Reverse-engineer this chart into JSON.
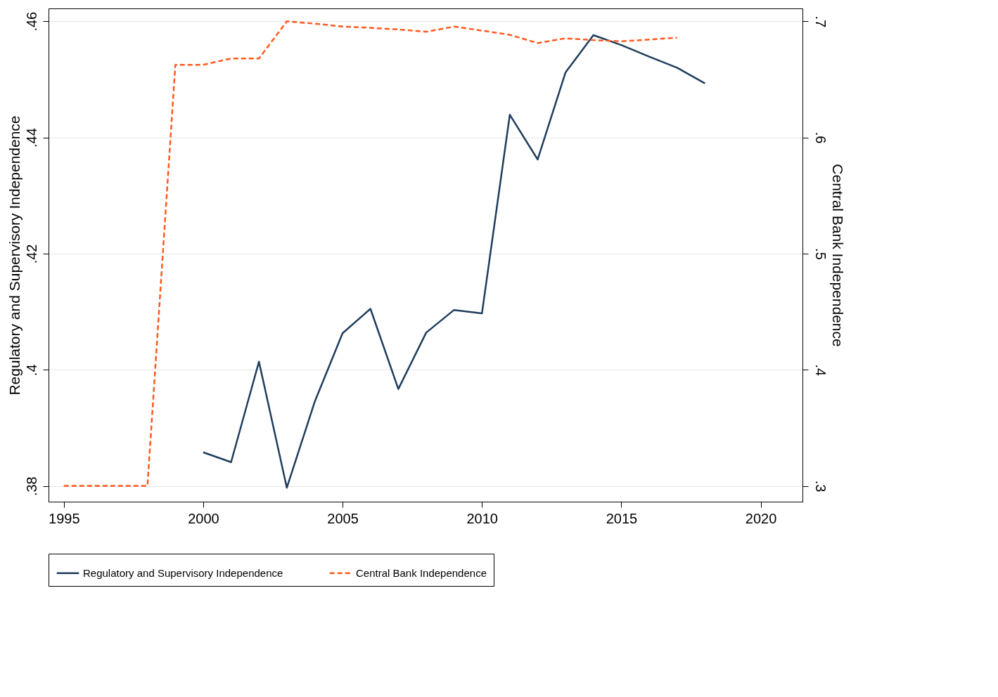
{
  "chart_data": {
    "type": "line",
    "ylabel": "Regulatory and Supervisory Independence",
    "y2label": "Central Bank Independence",
    "xlim": [
      1994.45,
      2021.5
    ],
    "xticks": [
      1995,
      2000,
      2005,
      2010,
      2015,
      2020
    ],
    "ylim": [
      0.3773,
      0.4622
    ],
    "yticks": [
      {
        "value": 0.38,
        "label": ".38"
      },
      {
        "value": 0.4,
        "label": ".4"
      },
      {
        "value": 0.42,
        "label": ".42"
      },
      {
        "value": 0.44,
        "label": ".44"
      },
      {
        "value": 0.46,
        "label": ".46"
      }
    ],
    "y2lim": [
      0.2864,
      0.7111
    ],
    "y2ticks": [
      {
        "value": 0.3,
        "label": ".3"
      },
      {
        "value": 0.4,
        "label": ".4"
      },
      {
        "value": 0.5,
        "label": ".5"
      },
      {
        "value": 0.6,
        "label": ".6"
      },
      {
        "value": 0.7,
        "label": ".7"
      }
    ],
    "grid": "y",
    "legend": "bottom",
    "series": [
      {
        "name": "Regulatory and Supervisory Independence",
        "color": "#1f3d5c",
        "line_style": "solid",
        "x": [
          2000,
          2001,
          2002,
          2003,
          2004,
          2005,
          2006,
          2007,
          2008,
          2009,
          2010,
          2011,
          2012,
          2013,
          2014,
          2015,
          2016,
          2017,
          2018
        ],
        "values": [
          0.3858,
          0.3841,
          0.4014,
          0.3797,
          0.3945,
          0.4063,
          0.4105,
          0.3967,
          0.4064,
          0.4103,
          0.4097,
          0.4439,
          0.4362,
          0.4512,
          0.4576,
          0.4559,
          0.4539,
          0.452,
          0.4493
        ]
      },
      {
        "name": "Central Bank Independence",
        "color": "#ff5a1f",
        "line_style": "dashed",
        "axis": "y2",
        "x": [
          1995,
          1996,
          1997,
          1998,
          1999,
          2000,
          2001,
          2002,
          2003,
          2004,
          2005,
          2006,
          2007,
          2008,
          2009,
          2010,
          2011,
          2012,
          2013,
          2014,
          2015,
          2016,
          2017
        ],
        "values": [
          0.3,
          0.3,
          0.3,
          0.3,
          0.6626,
          0.6626,
          0.668,
          0.668,
          0.7,
          0.698,
          0.6955,
          0.6944,
          0.693,
          0.691,
          0.6955,
          0.692,
          0.6884,
          0.6813,
          0.6854,
          0.6838,
          0.6828,
          0.6843,
          0.6859
        ]
      }
    ]
  }
}
